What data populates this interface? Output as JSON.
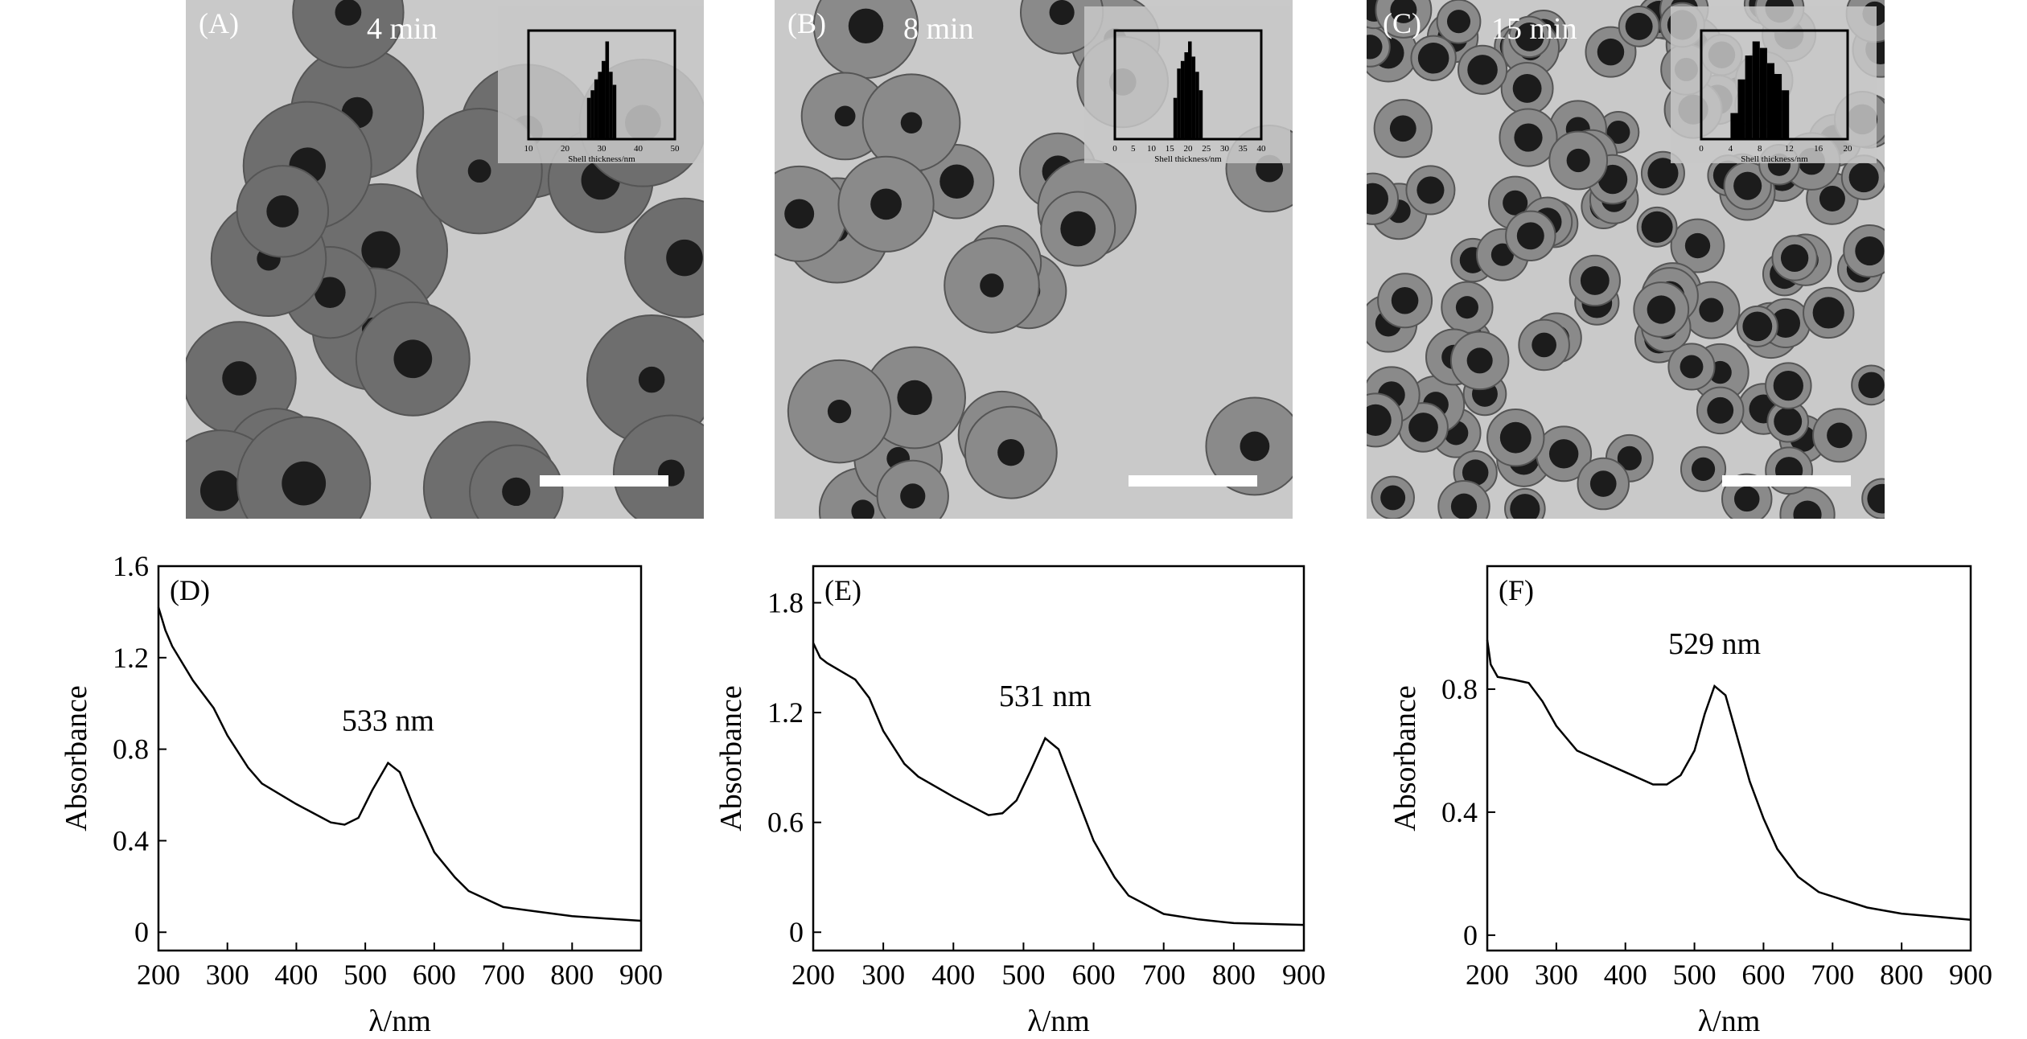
{
  "tem_panels": [
    {
      "label": "(A)",
      "time": "4 min",
      "inset": {
        "xlabel": "Shell thickness/nm",
        "ticks": [
          "10",
          "20",
          "30",
          "40",
          "50"
        ],
        "xlim": [
          10,
          50
        ],
        "bins": [
          [
            26,
            0.38
          ],
          [
            27,
            0.45
          ],
          [
            28,
            0.55
          ],
          [
            29,
            0.62
          ],
          [
            30,
            0.72
          ],
          [
            31,
            0.9
          ],
          [
            32,
            0.62
          ],
          [
            33,
            0.5
          ]
        ]
      }
    },
    {
      "label": "(B)",
      "time": "8 min",
      "inset": {
        "xlabel": "Shell thickness/nm",
        "ticks": [
          "0",
          "5",
          "10",
          "15",
          "20",
          "25",
          "30",
          "35",
          "40"
        ],
        "xlim": [
          0,
          40
        ],
        "bins": [
          [
            16,
            0.38
          ],
          [
            17,
            0.65
          ],
          [
            18,
            0.72
          ],
          [
            19,
            0.8
          ],
          [
            20,
            0.9
          ],
          [
            21,
            0.76
          ],
          [
            22,
            0.62
          ],
          [
            23,
            0.45
          ]
        ]
      }
    },
    {
      "label": "(C)",
      "time": "15 min",
      "inset": {
        "xlabel": "Shell thickness/nm",
        "ticks": [
          "0",
          "4",
          "8",
          "12",
          "16",
          "20"
        ],
        "xlim": [
          0,
          20
        ],
        "bins": [
          [
            4,
            0.24
          ],
          [
            5,
            0.55
          ],
          [
            6,
            0.77
          ],
          [
            7,
            0.9
          ],
          [
            8,
            0.84
          ],
          [
            9,
            0.7
          ],
          [
            10,
            0.6
          ],
          [
            11,
            0.45
          ]
        ]
      }
    }
  ],
  "chart_data": [
    {
      "type": "line",
      "panel_label": "(D)",
      "xlabel": "λ/nm",
      "ylabel": "Absorbance",
      "xlim": [
        200,
        900
      ],
      "ylim": [
        -0.08,
        1.6
      ],
      "xticks": [
        200,
        300,
        400,
        500,
        600,
        700,
        800,
        900
      ],
      "yticks": [
        "0",
        "0.4",
        "0.8",
        "1.2",
        "1.6"
      ],
      "ytick_values": [
        0,
        0.4,
        0.8,
        1.2,
        1.6
      ],
      "annotation": "533 nm",
      "peak": [
        533,
        0.74
      ],
      "x": [
        200,
        210,
        220,
        250,
        280,
        300,
        330,
        350,
        400,
        450,
        470,
        490,
        510,
        533,
        550,
        570,
        600,
        630,
        650,
        700,
        750,
        800,
        850,
        900
      ],
      "y": [
        1.42,
        1.32,
        1.25,
        1.1,
        0.98,
        0.86,
        0.72,
        0.65,
        0.56,
        0.48,
        0.47,
        0.5,
        0.62,
        0.74,
        0.7,
        0.55,
        0.35,
        0.24,
        0.18,
        0.11,
        0.09,
        0.07,
        0.06,
        0.05
      ]
    },
    {
      "type": "line",
      "panel_label": "(E)",
      "xlabel": "λ/nm",
      "ylabel": "Absorbance",
      "xlim": [
        200,
        900
      ],
      "ylim": [
        -0.1,
        2.0
      ],
      "xticks": [
        200,
        300,
        400,
        500,
        600,
        700,
        800,
        900
      ],
      "yticks": [
        "0",
        "0.6",
        "1.2",
        "1.8"
      ],
      "ytick_values": [
        0,
        0.6,
        1.2,
        1.8
      ],
      "annotation": "531 nm",
      "peak": [
        531,
        1.06
      ],
      "x": [
        200,
        210,
        220,
        260,
        280,
        300,
        330,
        350,
        400,
        450,
        470,
        490,
        510,
        531,
        550,
        570,
        600,
        630,
        650,
        700,
        750,
        800,
        850,
        900
      ],
      "y": [
        1.58,
        1.5,
        1.47,
        1.38,
        1.28,
        1.1,
        0.92,
        0.85,
        0.74,
        0.64,
        0.65,
        0.72,
        0.88,
        1.06,
        1.0,
        0.8,
        0.5,
        0.3,
        0.2,
        0.1,
        0.07,
        0.05,
        0.045,
        0.04
      ]
    },
    {
      "type": "line",
      "panel_label": "(F)",
      "xlabel": "λ/nm",
      "ylabel": "Absorbance",
      "xlim": [
        200,
        900
      ],
      "ylim": [
        -0.05,
        1.2
      ],
      "xticks": [
        200,
        300,
        400,
        500,
        600,
        700,
        800,
        900
      ],
      "yticks": [
        "0",
        "0.4",
        "0.8"
      ],
      "ytick_values": [
        0,
        0.4,
        0.8
      ],
      "annotation": "529 nm",
      "peak": [
        529,
        0.81
      ],
      "x": [
        200,
        205,
        215,
        240,
        260,
        280,
        300,
        330,
        350,
        400,
        440,
        460,
        480,
        500,
        515,
        529,
        545,
        560,
        580,
        600,
        620,
        650,
        680,
        750,
        800,
        850,
        900
      ],
      "y": [
        0.96,
        0.88,
        0.84,
        0.83,
        0.82,
        0.76,
        0.68,
        0.6,
        0.58,
        0.53,
        0.49,
        0.49,
        0.52,
        0.6,
        0.72,
        0.81,
        0.78,
        0.66,
        0.5,
        0.38,
        0.28,
        0.19,
        0.14,
        0.09,
        0.07,
        0.06,
        0.05
      ]
    }
  ]
}
